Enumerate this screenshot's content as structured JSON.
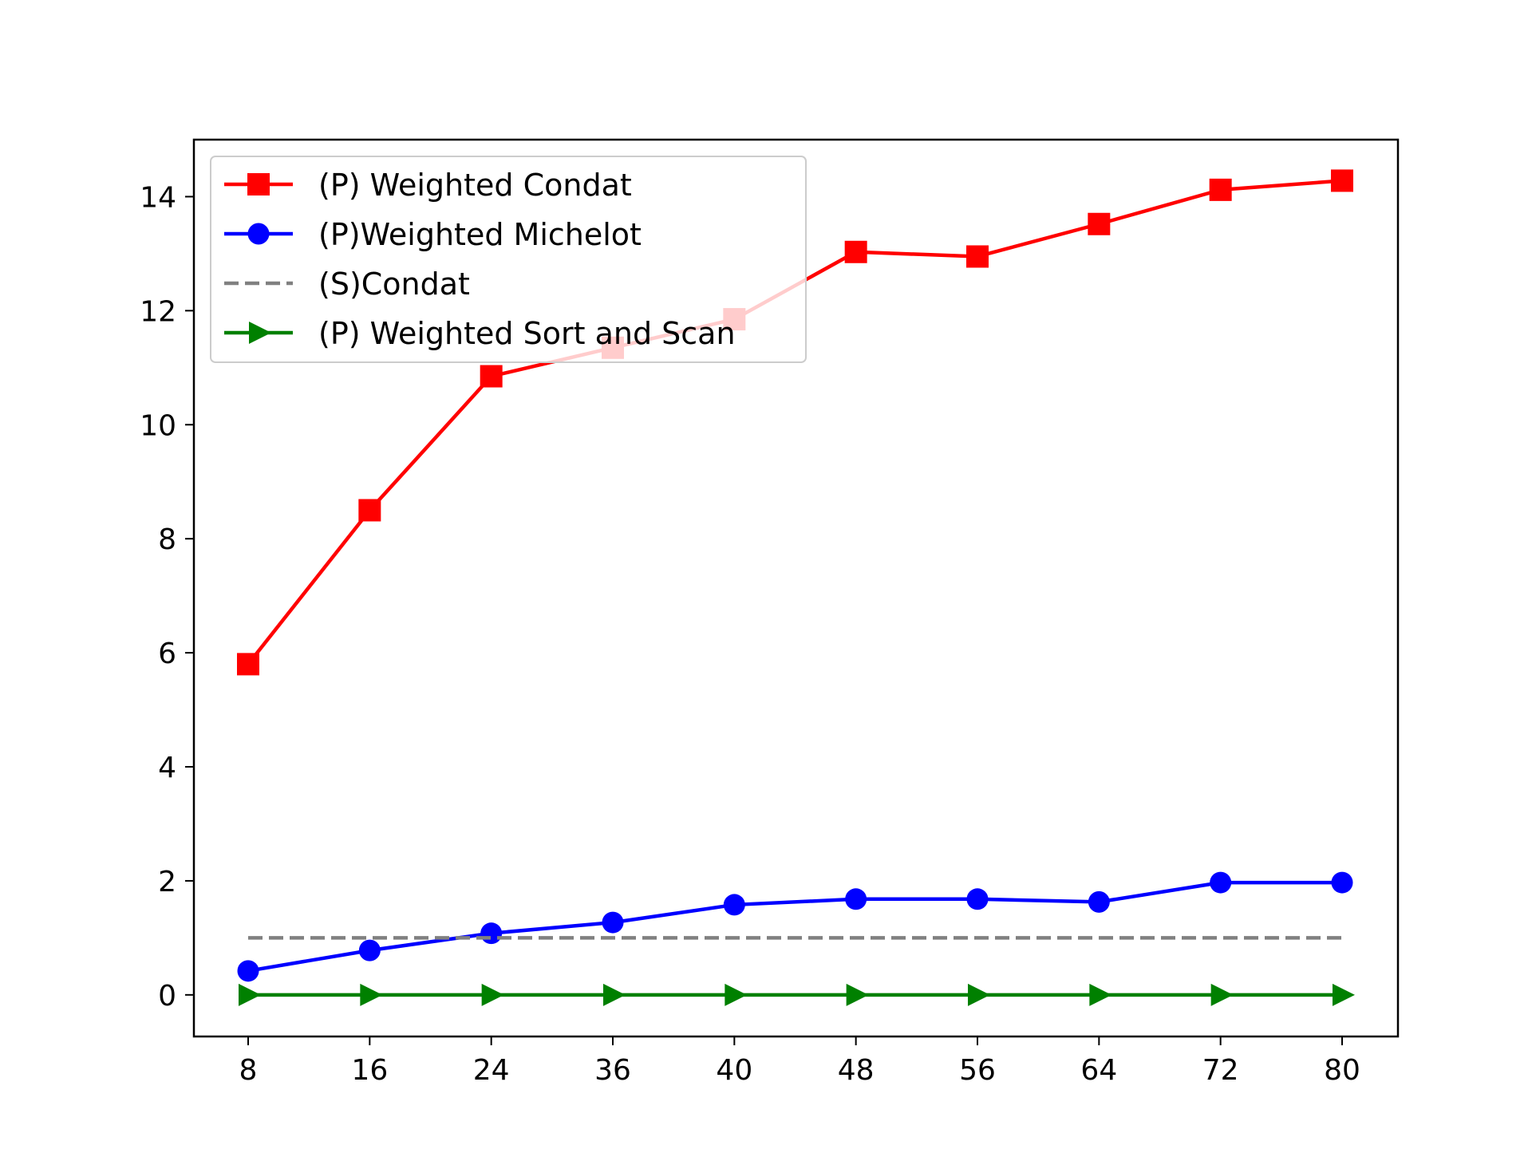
{
  "chart_data": {
    "type": "line",
    "title": "",
    "xlabel": "",
    "ylabel": "",
    "categories": [
      "8",
      "16",
      "24",
      "36",
      "40",
      "48",
      "56",
      "64",
      "72",
      "80"
    ],
    "ylim": [
      -0.73,
      15.0
    ],
    "yticks": [
      0,
      2,
      4,
      6,
      8,
      10,
      12,
      14
    ],
    "grid": false,
    "legend_position": "upper-left",
    "series": [
      {
        "name": "(P) Weighted Condat",
        "color": "#ff0000",
        "marker": "square",
        "linestyle": "solid",
        "values": [
          5.8,
          8.5,
          10.85,
          11.35,
          11.85,
          13.03,
          12.95,
          13.52,
          14.12,
          14.28
        ]
      },
      {
        "name": "(P)Weighted Michelot",
        "color": "#0000ff",
        "marker": "circle",
        "linestyle": "solid",
        "values": [
          0.42,
          0.78,
          1.08,
          1.27,
          1.58,
          1.68,
          1.68,
          1.63,
          1.97,
          1.97
        ]
      },
      {
        "name": "(S)Condat",
        "color": "#808080",
        "marker": "none",
        "linestyle": "dashed",
        "values": [
          1.0,
          1.0,
          1.0,
          1.0,
          1.0,
          1.0,
          1.0,
          1.0,
          1.0,
          1.0
        ]
      },
      {
        "name": "(P) Weighted Sort and Scan",
        "color": "#008000",
        "marker": "triangle-right",
        "linestyle": "solid",
        "values": [
          0.0,
          0.0,
          0.0,
          0.0,
          0.0,
          0.0,
          0.0,
          0.0,
          0.0,
          0.0
        ]
      }
    ]
  }
}
